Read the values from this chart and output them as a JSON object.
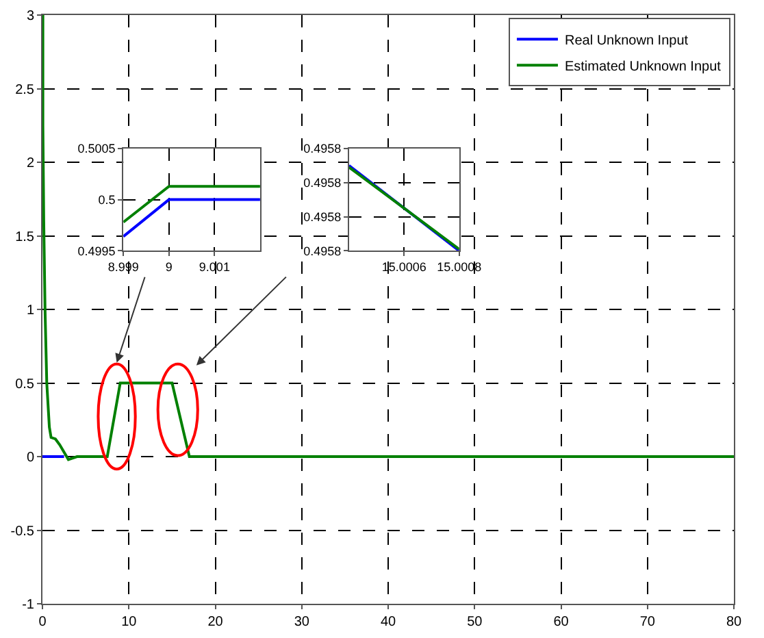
{
  "chart_data": [
    {
      "type": "line",
      "xlim": [
        0,
        80
      ],
      "ylim": [
        -1,
        3
      ],
      "xticks": [
        0,
        10,
        20,
        30,
        40,
        50,
        60,
        70,
        80
      ],
      "yticks": [
        -1,
        -0.5,
        0,
        0.5,
        1,
        1.5,
        2,
        2.5,
        3
      ],
      "grid": true,
      "legend": "top right",
      "marker": "none",
      "line_style": "solid",
      "series": [
        {
          "name": "Real Unknown Input",
          "color": "#0000ff",
          "x": [
            0,
            2.5
          ],
          "values": [
            0,
            0
          ]
        },
        {
          "name": "Estimated Unknown Input",
          "color": "#008000",
          "x": [
            0,
            0.05,
            0.05,
            0.15,
            0.3,
            0.5,
            0.8,
            1.0,
            1.5,
            2,
            3,
            4,
            5,
            7.5,
            9,
            15,
            17,
            80
          ],
          "values": [
            3,
            3,
            2.25,
            1.6,
            1.0,
            0.5,
            0.2,
            0.13,
            0.12,
            0.08,
            -0.02,
            0,
            0,
            0,
            0.5,
            0.5,
            0,
            0
          ]
        }
      ]
    },
    {
      "type": "line",
      "xlim": [
        8.999,
        9.002
      ],
      "ylim": [
        0.4995,
        0.5005
      ],
      "xticks": [
        8.999,
        9,
        9.001
      ],
      "yticks": [
        0.4995,
        0.5,
        0.5005
      ],
      "grid": true,
      "marker": "none",
      "line_style": "solid",
      "series": [
        {
          "color": "#0000ff",
          "x": [
            8.999,
            9,
            9.002
          ],
          "values": [
            0.49964,
            0.5,
            0.5
          ]
        },
        {
          "color": "#008000",
          "x": [
            8.999,
            9,
            9.002
          ],
          "values": [
            0.49978,
            0.50013,
            0.50013
          ]
        }
      ]
    },
    {
      "type": "line",
      "xlim": [
        15.0004,
        15.0008
      ],
      "ylim": [
        0.49577,
        0.49583
      ],
      "xticks": [
        15.0006,
        15.0008
      ],
      "yticks": [
        {
          "value": 0.49577,
          "label": "0.4958"
        },
        {
          "value": 0.49579,
          "label": "0.4958"
        },
        {
          "value": 0.49581,
          "label": "0.4958"
        },
        {
          "value": 0.49583,
          "label": "0.4958"
        }
      ],
      "grid": true,
      "marker": "none",
      "line_style": "solid",
      "series": [
        {
          "color": "#0000ff",
          "x": [
            15.0004,
            15.0008
          ],
          "values": [
            0.49582,
            0.49577
          ]
        },
        {
          "color": "#008000",
          "x": [
            15.0004,
            15.0008
          ],
          "values": [
            0.495819,
            0.495771
          ]
        }
      ]
    }
  ]
}
